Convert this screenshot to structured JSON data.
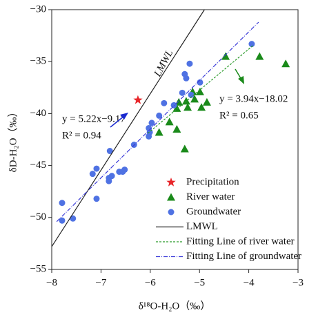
{
  "chart_data": {
    "type": "scatter",
    "xlabel": "δ¹⁸O-H₂O（‰）",
    "ylabel": "δD-H₂O（‰）",
    "xlim": [
      -8,
      -3
    ],
    "ylim": [
      -55,
      -30
    ],
    "xticks": [
      {
        "value": -8,
        "label": "−8"
      },
      {
        "value": -7,
        "label": "−7"
      },
      {
        "value": -6,
        "label": "−6"
      },
      {
        "value": -5,
        "label": "−5"
      },
      {
        "value": -4,
        "label": "−4"
      },
      {
        "value": -3,
        "label": "−3"
      }
    ],
    "yticks": [
      {
        "value": -55,
        "label": "−55"
      },
      {
        "value": -50,
        "label": "−50"
      },
      {
        "value": -45,
        "label": "−45"
      },
      {
        "value": -40,
        "label": "−40"
      },
      {
        "value": -35,
        "label": "−35"
      },
      {
        "value": -30,
        "label": "−30"
      }
    ],
    "series": [
      {
        "name": "Precipitation",
        "kind": "star",
        "color": "#e8262a",
        "x": [
          -6.25
        ],
        "values": [
          -38.7
        ]
      },
      {
        "name": "River water",
        "kind": "triangle",
        "color": "#1a8a1a",
        "x": [
          -5.82,
          -5.61,
          -5.46,
          -5.46,
          -5.42,
          -5.3,
          -5.27,
          -5.24,
          -5.14,
          -5.1,
          -4.99,
          -4.96,
          -4.85,
          -4.47,
          -3.78,
          -3.25
        ],
        "values": [
          -41.8,
          -40.8,
          -41.5,
          -39.5,
          -38.9,
          -43.4,
          -38.8,
          -39.4,
          -37.9,
          -38.6,
          -37.9,
          -39.4,
          -38.9,
          -34.5,
          -34.5,
          -35.2
        ]
      },
      {
        "name": "Groundwater",
        "kind": "circle",
        "color": "#4f72e3",
        "x": [
          -7.79,
          -7.79,
          -7.57,
          -7.17,
          -7.09,
          -7.09,
          -6.84,
          -6.84,
          -6.78,
          -6.82,
          -6.63,
          -6.56,
          -6.52,
          -6.33,
          -6.03,
          -6.03,
          -6.01,
          -5.97,
          -5.82,
          -5.72,
          -5.52,
          -5.35,
          -5.3,
          -5.27,
          -5.2,
          -5.17,
          -4.99,
          -3.94
        ],
        "values": [
          -48.6,
          -50.3,
          -50.1,
          -45.8,
          -45.3,
          -48.2,
          -46.2,
          -46.5,
          -46.0,
          -43.6,
          -45.6,
          -45.6,
          -45.4,
          -43.0,
          -42.2,
          -41.4,
          -41.8,
          -40.9,
          -40.2,
          -39.0,
          -39.2,
          -38.0,
          -36.2,
          -36.6,
          -35.2,
          -38.2,
          -37.0,
          -33.3
        ]
      },
      {
        "name": "LMWL",
        "kind": "line",
        "color": "#222222",
        "dash": "",
        "x": [
          -8,
          -4.9
        ],
        "values": [
          -52.8,
          -30
        ]
      },
      {
        "name": "Fitting Line of river water",
        "kind": "line",
        "color": "#2a9a2a",
        "dash": "3,2",
        "x": [
          -6.05,
          -3.9
        ],
        "values": [
          -41.9,
          -33.4
        ]
      },
      {
        "name": "Fitting Line of groundwater",
        "kind": "line",
        "color": "#3a3ad8",
        "dash": "6,2,1,2",
        "x": [
          -7.9,
          -3.8
        ],
        "values": [
          -50.4,
          -31.2
        ]
      }
    ],
    "annotations": [
      "LMWL",
      "y = 5.22x−9.17",
      "R² = 0.94",
      "y = 3.94x−18.02",
      "R² = 0.65"
    ]
  }
}
